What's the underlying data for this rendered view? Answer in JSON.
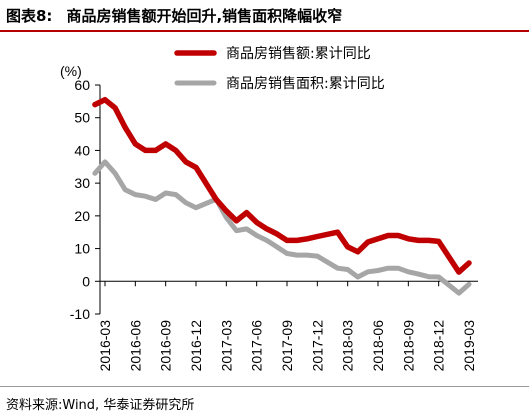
{
  "header": {
    "label": "图表8:",
    "title": "商品房销售额开始回升,销售面积降幅收窄"
  },
  "source": "资料来源:Wind, 华泰证券研究所",
  "chart_data": {
    "type": "line",
    "ylabel": "(%)",
    "ylim": [
      -10,
      60
    ],
    "yticks": [
      -10,
      0,
      10,
      20,
      30,
      40,
      50,
      60
    ],
    "xticks": [
      "2016-03",
      "2016-06",
      "2016-09",
      "2016-12",
      "2017-03",
      "2017-06",
      "2017-09",
      "2017-12",
      "2018-03",
      "2018-06",
      "2018-09",
      "2018-12",
      "2019-03"
    ],
    "x": [
      "2016-02",
      "2016-03",
      "2016-04",
      "2016-05",
      "2016-06",
      "2016-07",
      "2016-08",
      "2016-09",
      "2016-10",
      "2016-11",
      "2016-12",
      "2017-02",
      "2017-03",
      "2017-04",
      "2017-05",
      "2017-06",
      "2017-07",
      "2017-08",
      "2017-09",
      "2017-10",
      "2017-11",
      "2017-12",
      "2018-02",
      "2018-03",
      "2018-04",
      "2018-05",
      "2018-06",
      "2018-07",
      "2018-08",
      "2018-09",
      "2018-10",
      "2018-11",
      "2018-12",
      "2019-02",
      "2019-03"
    ],
    "series": [
      {
        "name": "商品房销售额:累计同比",
        "color": "#c00000",
        "values": [
          54.0,
          55.5,
          53.0,
          47.0,
          42.0,
          40.0,
          40.0,
          42.0,
          40.0,
          36.5,
          34.8,
          25.0,
          21.5,
          18.5,
          21.0,
          18.0,
          16.0,
          14.5,
          12.5,
          12.5,
          13.0,
          13.7,
          15.0,
          10.5,
          9.0,
          12.0,
          13.0,
          14.0,
          14.0,
          13.0,
          12.5,
          12.5,
          12.2,
          2.8,
          5.6
        ],
        "width": 5.5
      },
      {
        "name": "商品房销售面积:累计同比",
        "color": "#a6a6a6",
        "values": [
          33.0,
          36.5,
          33.0,
          28.0,
          26.5,
          26.0,
          25.0,
          27.0,
          26.5,
          24.0,
          22.5,
          25.1,
          19.5,
          15.5,
          16.0,
          14.0,
          12.5,
          10.5,
          8.5,
          8.0,
          8.0,
          7.7,
          4.0,
          3.6,
          1.3,
          2.9,
          3.3,
          4.0,
          4.0,
          2.9,
          2.2,
          1.4,
          1.3,
          -3.6,
          -0.9
        ],
        "width": 5
      }
    ],
    "legend_position": "top-right",
    "grid": false
  }
}
